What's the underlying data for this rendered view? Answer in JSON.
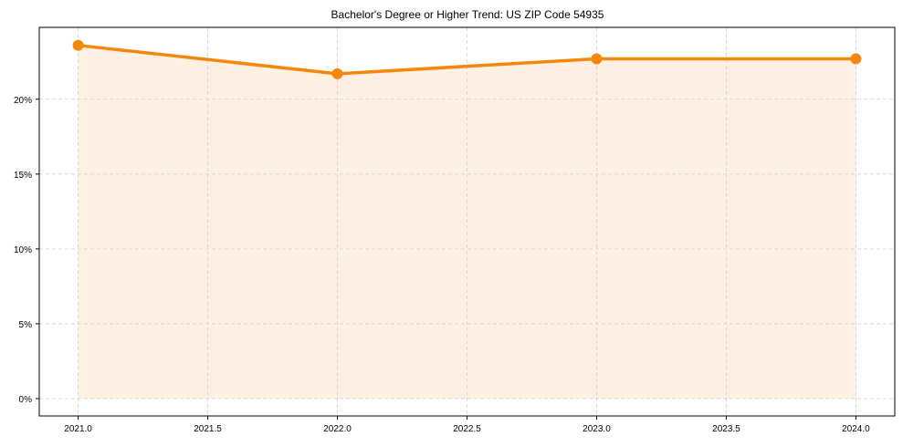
{
  "chart_data": {
    "type": "area",
    "title": "Bachelor's Degree or Higher Trend: US ZIP Code 54935",
    "xlabel": "",
    "ylabel": "",
    "x": [
      2021.0,
      2022.0,
      2023.0,
      2024.0
    ],
    "series": [
      {
        "name": "Bachelor's Degree or Higher",
        "values": [
          23.6,
          21.7,
          22.7,
          22.7
        ],
        "unit": "%",
        "line_color": "#F5880A",
        "fill_color": "#FEF1E3",
        "marker": "circle"
      }
    ],
    "xlim": [
      2020.85,
      2024.15
    ],
    "ylim": [
      -1.16,
      24.8
    ],
    "xticks": [
      2021.0,
      2021.5,
      2022.0,
      2022.5,
      2023.0,
      2023.5,
      2024.0
    ],
    "xtick_labels": [
      "2021.0",
      "2021.5",
      "2022.0",
      "2022.5",
      "2023.0",
      "2023.5",
      "2024.0"
    ],
    "yticks": [
      0,
      5,
      10,
      15,
      20
    ],
    "ytick_labels": [
      "0%",
      "5%",
      "10%",
      "15%",
      "20%"
    ],
    "grid": true,
    "grid_style": "dashed",
    "legend": null
  }
}
